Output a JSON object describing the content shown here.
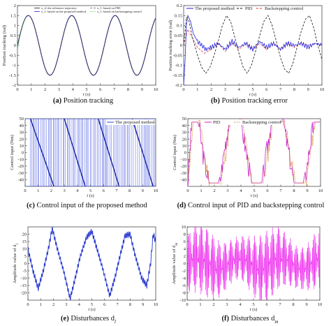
{
  "chart_data": [
    {
      "type": "line",
      "caption_letter": "(a)",
      "caption": "Position tracking",
      "xlabel": "t (s)",
      "ylabel": "Position tracking (rad)",
      "xlim": [
        0,
        10
      ],
      "ylim": [
        -2,
        2
      ],
      "xticks": [
        0,
        1,
        2,
        3,
        4,
        5,
        6,
        7,
        8,
        9,
        10
      ],
      "yticks": [
        -2,
        -1.5,
        -1,
        -0.5,
        0,
        0.5,
        1,
        1.5,
        2
      ],
      "legend_position": "top",
      "series": [
        {
          "name": "x_d: the reference trajectory",
          "color": "#1a1a1a",
          "style": "solid",
          "formula": "1.5*sin(2t)",
          "amplitude": 1.5,
          "omega": 2
        },
        {
          "name": "x_1: based on the proposed method",
          "color": "#2222dd",
          "style": "solid",
          "formula": "1.5*sin(2t)",
          "amplitude": 1.5,
          "omega": 2
        },
        {
          "name": "x_1: based on PID",
          "color": "#555555",
          "style": "dashed",
          "formula": "1.5*sin(2t)",
          "amplitude": 1.5,
          "omega": 2
        },
        {
          "name": "x_1: based on backstepping control",
          "color": "#22aa22",
          "style": "dotted",
          "formula": "1.5*sin(2t)",
          "amplitude": 1.5,
          "omega": 2
        }
      ]
    },
    {
      "type": "line",
      "caption_letter": "(b)",
      "caption": "Position tracking error",
      "xlabel": "t (s)",
      "ylabel": "Position tracking error (rad)",
      "xlim": [
        0,
        10
      ],
      "ylim": [
        -0.2,
        0.2
      ],
      "xticks": [
        0,
        1,
        2,
        3,
        4,
        5,
        6,
        7,
        8,
        9,
        10
      ],
      "yticks": [
        -0.2,
        -0.15,
        -0.1,
        -0.05,
        0,
        0.05,
        0.1,
        0.15,
        0.2
      ],
      "legend_position": "top",
      "series": [
        {
          "name": "The proposed method",
          "color": "#2222dd",
          "style": "solid",
          "points": [
            [
              0,
              -0.2
            ],
            [
              0.1,
              -0.08
            ],
            [
              0.2,
              0.1
            ],
            [
              0.3,
              0.15
            ],
            [
              0.5,
              0.12
            ],
            [
              0.7,
              0.06
            ],
            [
              1.0,
              0.02
            ],
            [
              1.3,
              0.0
            ],
            [
              1.6,
              -0.02
            ],
            [
              2.0,
              -0.01
            ],
            [
              2.5,
              0.01
            ],
            [
              3.0,
              -0.02
            ],
            [
              3.5,
              0.02
            ],
            [
              4.0,
              -0.01
            ],
            [
              4.5,
              0.01
            ],
            [
              5.0,
              -0.02
            ],
            [
              5.5,
              0.02
            ],
            [
              6.0,
              -0.01
            ],
            [
              6.5,
              0.01
            ],
            [
              7.0,
              -0.02
            ],
            [
              7.5,
              0.01
            ],
            [
              8.0,
              0.0
            ],
            [
              8.5,
              0.01
            ],
            [
              9.0,
              -0.01
            ],
            [
              9.5,
              0.01
            ],
            [
              10.0,
              0.0
            ]
          ]
        },
        {
          "name": "PID",
          "color": "#111111",
          "style": "dashed",
          "points": [
            [
              0,
              0.0
            ],
            [
              0.2,
              0.14
            ],
            [
              0.4,
              0.12
            ],
            [
              0.6,
              0.05
            ],
            [
              0.8,
              0.0
            ],
            [
              1.0,
              -0.05
            ],
            [
              1.3,
              -0.11
            ],
            [
              1.6,
              -0.14
            ],
            [
              1.9,
              -0.11
            ],
            [
              2.2,
              -0.05
            ],
            [
              2.5,
              0.02
            ],
            [
              2.8,
              0.1
            ],
            [
              3.1,
              0.15
            ],
            [
              3.4,
              0.12
            ],
            [
              3.7,
              0.04
            ],
            [
              4.0,
              -0.04
            ],
            [
              4.3,
              -0.11
            ],
            [
              4.6,
              -0.14
            ],
            [
              4.9,
              -0.1
            ],
            [
              5.2,
              -0.03
            ],
            [
              5.5,
              0.05
            ],
            [
              5.8,
              0.12
            ],
            [
              6.1,
              0.15
            ],
            [
              6.4,
              0.1
            ],
            [
              6.7,
              0.02
            ],
            [
              7.0,
              -0.06
            ],
            [
              7.3,
              -0.12
            ],
            [
              7.6,
              -0.14
            ],
            [
              7.9,
              -0.09
            ],
            [
              8.2,
              -0.01
            ],
            [
              8.5,
              0.07
            ],
            [
              8.8,
              0.13
            ],
            [
              9.1,
              0.15
            ],
            [
              9.4,
              0.09
            ],
            [
              9.7,
              0.0
            ],
            [
              10.0,
              -0.07
            ]
          ]
        },
        {
          "name": "Backstepping control",
          "color": "#dd3333",
          "style": "dashed",
          "points": [
            [
              0,
              0.0
            ],
            [
              0.3,
              0.08
            ],
            [
              0.6,
              0.04
            ],
            [
              1.0,
              -0.01
            ],
            [
              1.5,
              -0.04
            ],
            [
              2.0,
              -0.02
            ],
            [
              2.5,
              0.01
            ],
            [
              3.0,
              -0.03
            ],
            [
              3.5,
              0.01
            ],
            [
              4.0,
              -0.02
            ],
            [
              4.5,
              0.01
            ],
            [
              5.0,
              -0.02
            ],
            [
              5.5,
              0.01
            ],
            [
              6.0,
              -0.02
            ],
            [
              6.5,
              0.01
            ],
            [
              7.0,
              -0.02
            ],
            [
              7.5,
              0.01
            ],
            [
              8.0,
              -0.01
            ],
            [
              8.5,
              0.01
            ],
            [
              9.0,
              0.0
            ],
            [
              9.5,
              0.01
            ],
            [
              10.0,
              0.0
            ]
          ]
        }
      ]
    },
    {
      "type": "line",
      "caption_letter": "(c)",
      "caption": "Control input of the proposed method",
      "xlabel": "t (s)",
      "ylabel": "Control input (Nm)",
      "xlim": [
        0,
        10
      ],
      "ylim": [
        -50,
        50
      ],
      "xticks": [
        0,
        1,
        2,
        3,
        4,
        5,
        6,
        7,
        8,
        9,
        10
      ],
      "yticks": [
        -40,
        -30,
        -20,
        -10,
        0,
        10,
        20,
        30,
        40,
        50
      ],
      "legend_position": "top-right",
      "series": [
        {
          "name": "The proposed method",
          "color": "#3344dd",
          "style": "solid",
          "description": "switching between -50 and 50 with sloped ramps",
          "ramps": [
            [
              0.4,
              50,
              2.2,
              -50
            ],
            [
              3.0,
              50,
              4.6,
              -50
            ],
            [
              5.6,
              50,
              7.2,
              -50
            ],
            [
              8.2,
              50,
              9.8,
              -50
            ]
          ]
        }
      ]
    },
    {
      "type": "line",
      "caption_letter": "(d)",
      "caption": "Control input of PID and backstepping control",
      "xlabel": "t (s)",
      "ylabel": "Control input (Nm)",
      "xlim": [
        0,
        10
      ],
      "ylim": [
        -50,
        50
      ],
      "xticks": [
        0,
        1,
        2,
        3,
        4,
        5,
        6,
        7,
        8,
        9,
        10
      ],
      "yticks": [
        -40,
        -30,
        -20,
        -10,
        0,
        10,
        20,
        30,
        40,
        50
      ],
      "legend_position": "top",
      "series": [
        {
          "name": "PID",
          "color": "#cc22cc",
          "style": "solid",
          "points": [
            [
              0,
              -45
            ],
            [
              0.3,
              45
            ],
            [
              0.8,
              45
            ],
            [
              1.2,
              -10
            ],
            [
              1.6,
              -45
            ],
            [
              2.4,
              -45
            ],
            [
              2.8,
              10
            ],
            [
              3.1,
              45
            ],
            [
              4.0,
              45
            ],
            [
              4.4,
              0
            ],
            [
              4.8,
              -45
            ],
            [
              5.6,
              -45
            ],
            [
              6.0,
              10
            ],
            [
              6.3,
              45
            ],
            [
              7.2,
              45
            ],
            [
              7.6,
              0
            ],
            [
              8.0,
              -45
            ],
            [
              8.8,
              -45
            ],
            [
              9.2,
              10
            ],
            [
              9.5,
              45
            ],
            [
              10.0,
              45
            ]
          ]
        },
        {
          "name": "Backstepping control",
          "color": "#cc6600",
          "style": "dotted",
          "points": [
            [
              0,
              -45
            ],
            [
              0.4,
              45
            ],
            [
              0.9,
              45
            ],
            [
              1.3,
              -15
            ],
            [
              1.7,
              -45
            ],
            [
              2.5,
              -45
            ],
            [
              2.9,
              5
            ],
            [
              3.2,
              45
            ],
            [
              4.1,
              45
            ],
            [
              4.5,
              -5
            ],
            [
              4.9,
              -45
            ],
            [
              5.7,
              -45
            ],
            [
              6.1,
              5
            ],
            [
              6.4,
              45
            ],
            [
              7.3,
              45
            ],
            [
              7.7,
              -5
            ],
            [
              8.1,
              -45
            ],
            [
              8.9,
              -45
            ],
            [
              9.3,
              5
            ],
            [
              9.6,
              45
            ],
            [
              10.0,
              45
            ]
          ]
        }
      ]
    },
    {
      "type": "line",
      "caption_letter": "(e)",
      "caption": "Disturbances d",
      "caption_sub": "l",
      "xlabel": "t (s)",
      "ylabel": "Amplitude value of d",
      "ylabel_sub": "l",
      "xlim": [
        0,
        10
      ],
      "ylim": [
        -25,
        25
      ],
      "xticks": [
        0,
        1,
        2,
        3,
        4,
        5,
        6,
        7,
        8,
        9,
        10
      ],
      "yticks": [
        -20,
        -15,
        -10,
        -5,
        0,
        5,
        10,
        15,
        20
      ],
      "series": [
        {
          "name": "d_l",
          "color": "#2233cc",
          "style": "solid",
          "points": [
            [
              0,
              10
            ],
            [
              0.4,
              -5
            ],
            [
              0.8,
              -17
            ],
            [
              1.2,
              -5
            ],
            [
              1.6,
              10
            ],
            [
              1.9,
              24
            ],
            [
              2.3,
              10
            ],
            [
              2.8,
              -5
            ],
            [
              3.3,
              -24
            ],
            [
              3.7,
              -10
            ],
            [
              4.1,
              5
            ],
            [
              4.6,
              18
            ],
            [
              5.0,
              22
            ],
            [
              5.4,
              10
            ],
            [
              5.9,
              -5
            ],
            [
              6.4,
              -22
            ],
            [
              6.8,
              -10
            ],
            [
              7.2,
              5
            ],
            [
              7.6,
              19
            ],
            [
              8.0,
              20
            ],
            [
              8.4,
              5
            ],
            [
              8.9,
              -10
            ],
            [
              9.3,
              -15
            ],
            [
              9.6,
              0
            ],
            [
              9.8,
              20
            ],
            [
              10.0,
              15
            ]
          ]
        }
      ]
    },
    {
      "type": "line",
      "caption_letter": "(f)",
      "caption": "Disturbances d",
      "caption_sub": "m",
      "xlabel": "t (s)",
      "ylabel": "Amplitude value of d",
      "ylabel_sub": "m",
      "xlim": [
        0,
        10
      ],
      "ylim": [
        -10,
        10
      ],
      "xticks": [
        0,
        1,
        2,
        3,
        4,
        5,
        6,
        7,
        8,
        9,
        10
      ],
      "yticks": [
        -10,
        -8,
        -6,
        -4,
        -2,
        0,
        2,
        4,
        6,
        8,
        10
      ],
      "series": [
        {
          "name": "d_m",
          "color": "#ee22ee",
          "style": "solid",
          "description": "high-frequency oscillation with amplitude near 10, modulated"
        }
      ]
    }
  ]
}
